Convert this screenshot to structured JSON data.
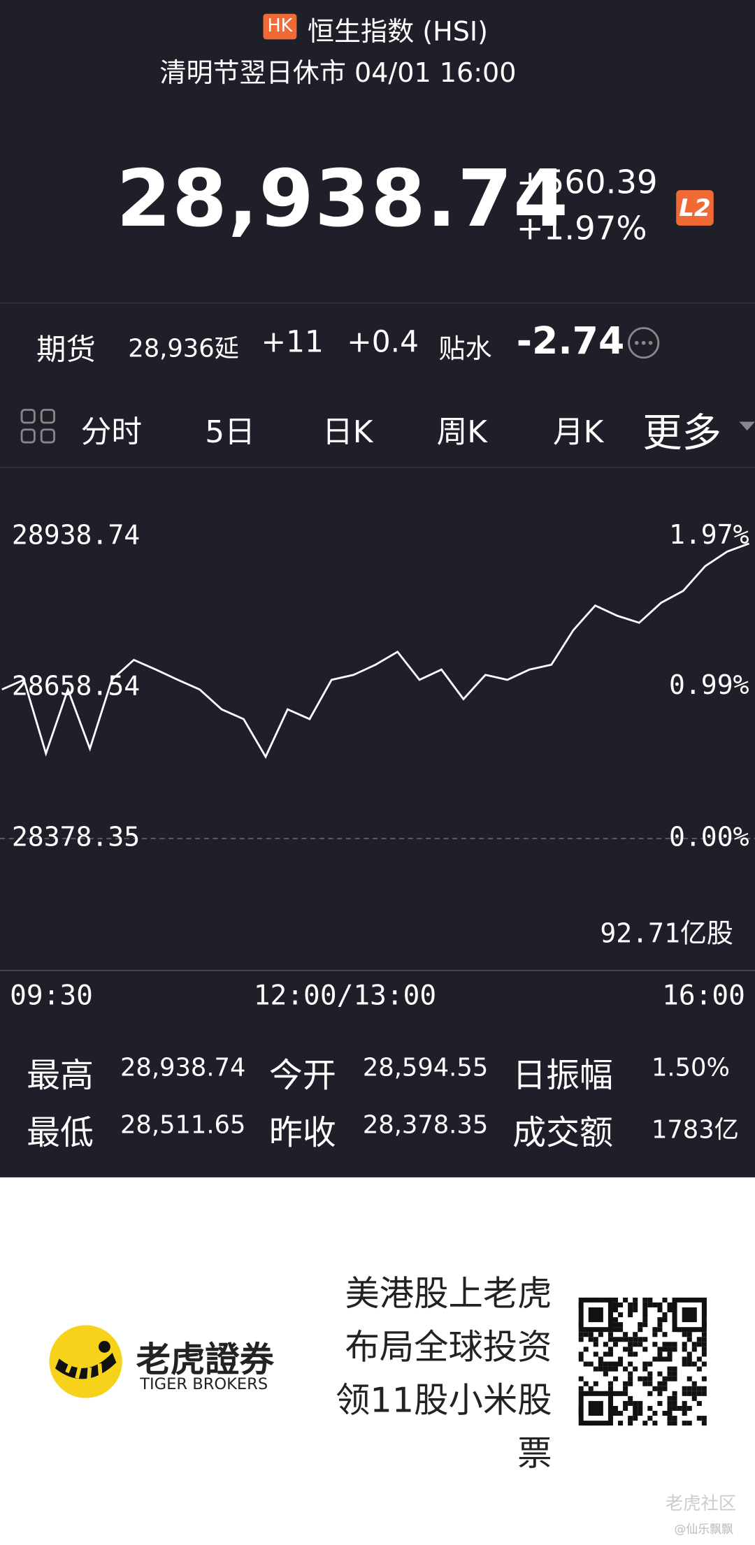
{
  "header": {
    "badge": "HK",
    "name": "恒生指数 (HSI)",
    "status": "清明节翌日休市 04/01 16:00"
  },
  "quote": {
    "price": "28,938.74",
    "change": "+560.39",
    "percent": "+1.97%",
    "level": "L2"
  },
  "futures": {
    "label": "期货",
    "price": "28,936延",
    "change": "+11",
    "percent": "+0.4",
    "basis_label": "贴水",
    "basis": "-2.74"
  },
  "tabs": [
    "分时",
    "5日",
    "日K",
    "周K",
    "月K",
    "更多"
  ],
  "chart": {
    "type": "line",
    "color": "#ffffff",
    "values": [
      28655,
      28673,
      28536,
      28655,
      28545,
      28673,
      28710,
      28692,
      28673,
      28655,
      28618,
      28600,
      28530,
      28618,
      28600,
      28673,
      28682,
      28701,
      28725,
      28673,
      28692,
      28637,
      28682,
      28673,
      28692,
      28701,
      28765,
      28811,
      28792,
      28779,
      28816,
      28838,
      28884,
      28911,
      28926
    ],
    "ylim": [
      28133,
      29039
    ],
    "yticks": [
      28378.35,
      28658.54,
      28938.74
    ],
    "y2lim": [
      -0.86,
      2.32
    ],
    "y2ticks": [
      {
        "value": 0,
        "label": "0.00%"
      },
      {
        "value": 0.99,
        "label": "0.99%"
      },
      {
        "value": 1.97,
        "label": "1.97%"
      }
    ],
    "xtick_labels": [
      "09:30",
      "12:00/13:00",
      "16:00"
    ],
    "volume_label": "92.71亿股"
  },
  "stats": [
    [
      "最高",
      "28,938.74",
      "今开",
      "28,594.55",
      "日振幅",
      "1.50%"
    ],
    [
      "最低",
      "28,511.65",
      "昨收",
      "28,378.35",
      "成交额",
      "1783亿"
    ]
  ],
  "ad": {
    "brand": "老虎證券",
    "brand_en": "TIGER BROKERS",
    "slogan": [
      "美港股上老虎",
      "布局全球投资",
      "领11股小米股",
      "票"
    ],
    "watermark": "老虎社区",
    "credit": "@仙乐飘飘"
  }
}
